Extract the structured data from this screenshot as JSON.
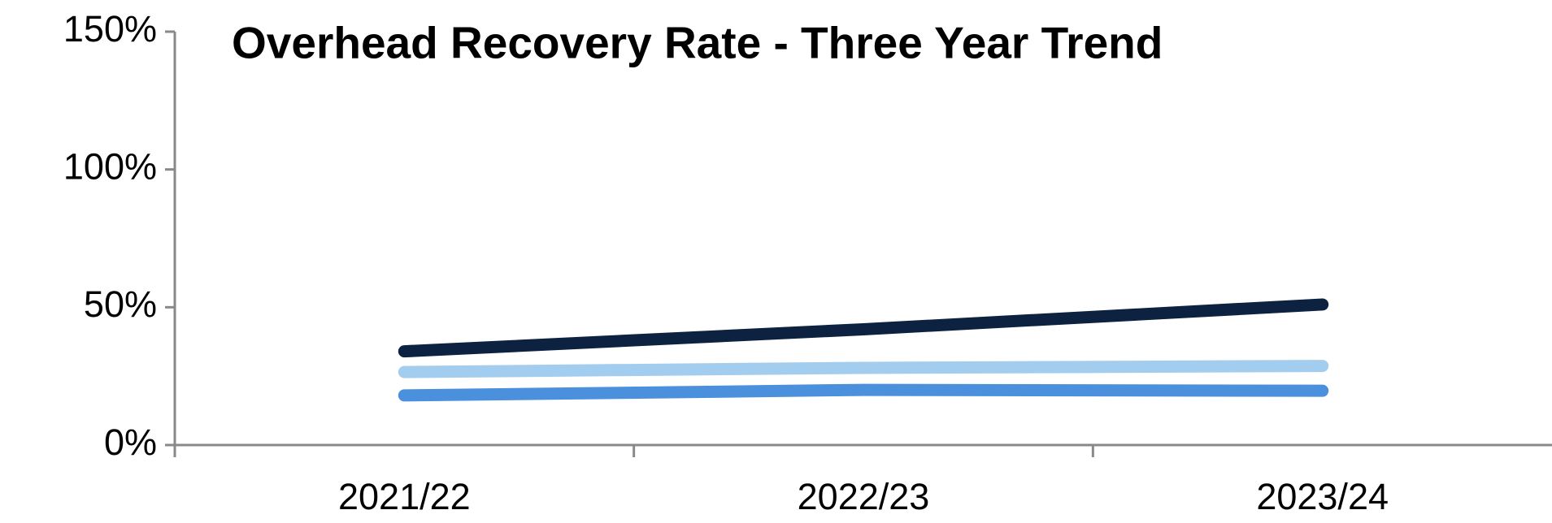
{
  "chart_data": {
    "type": "line",
    "title": "Overhead Recovery Rate - Three Year Trend",
    "categories": [
      "2021/22",
      "2022/23",
      "2023/24"
    ],
    "series": [
      {
        "color": "#0d2240",
        "values": [
          34,
          42,
          51
        ]
      },
      {
        "color": "#a3cdee",
        "values": [
          26.5,
          28,
          28.7
        ]
      },
      {
        "color": "#4a90dc",
        "values": [
          18,
          20,
          19.7
        ]
      }
    ],
    "ylim": [
      0,
      150
    ],
    "yticks": [
      {
        "value": 0,
        "label": "0%"
      },
      {
        "value": 50,
        "label": "50%"
      },
      {
        "value": 100,
        "label": "100%"
      },
      {
        "value": 150,
        "label": "150%"
      }
    ],
    "grid": false
  }
}
